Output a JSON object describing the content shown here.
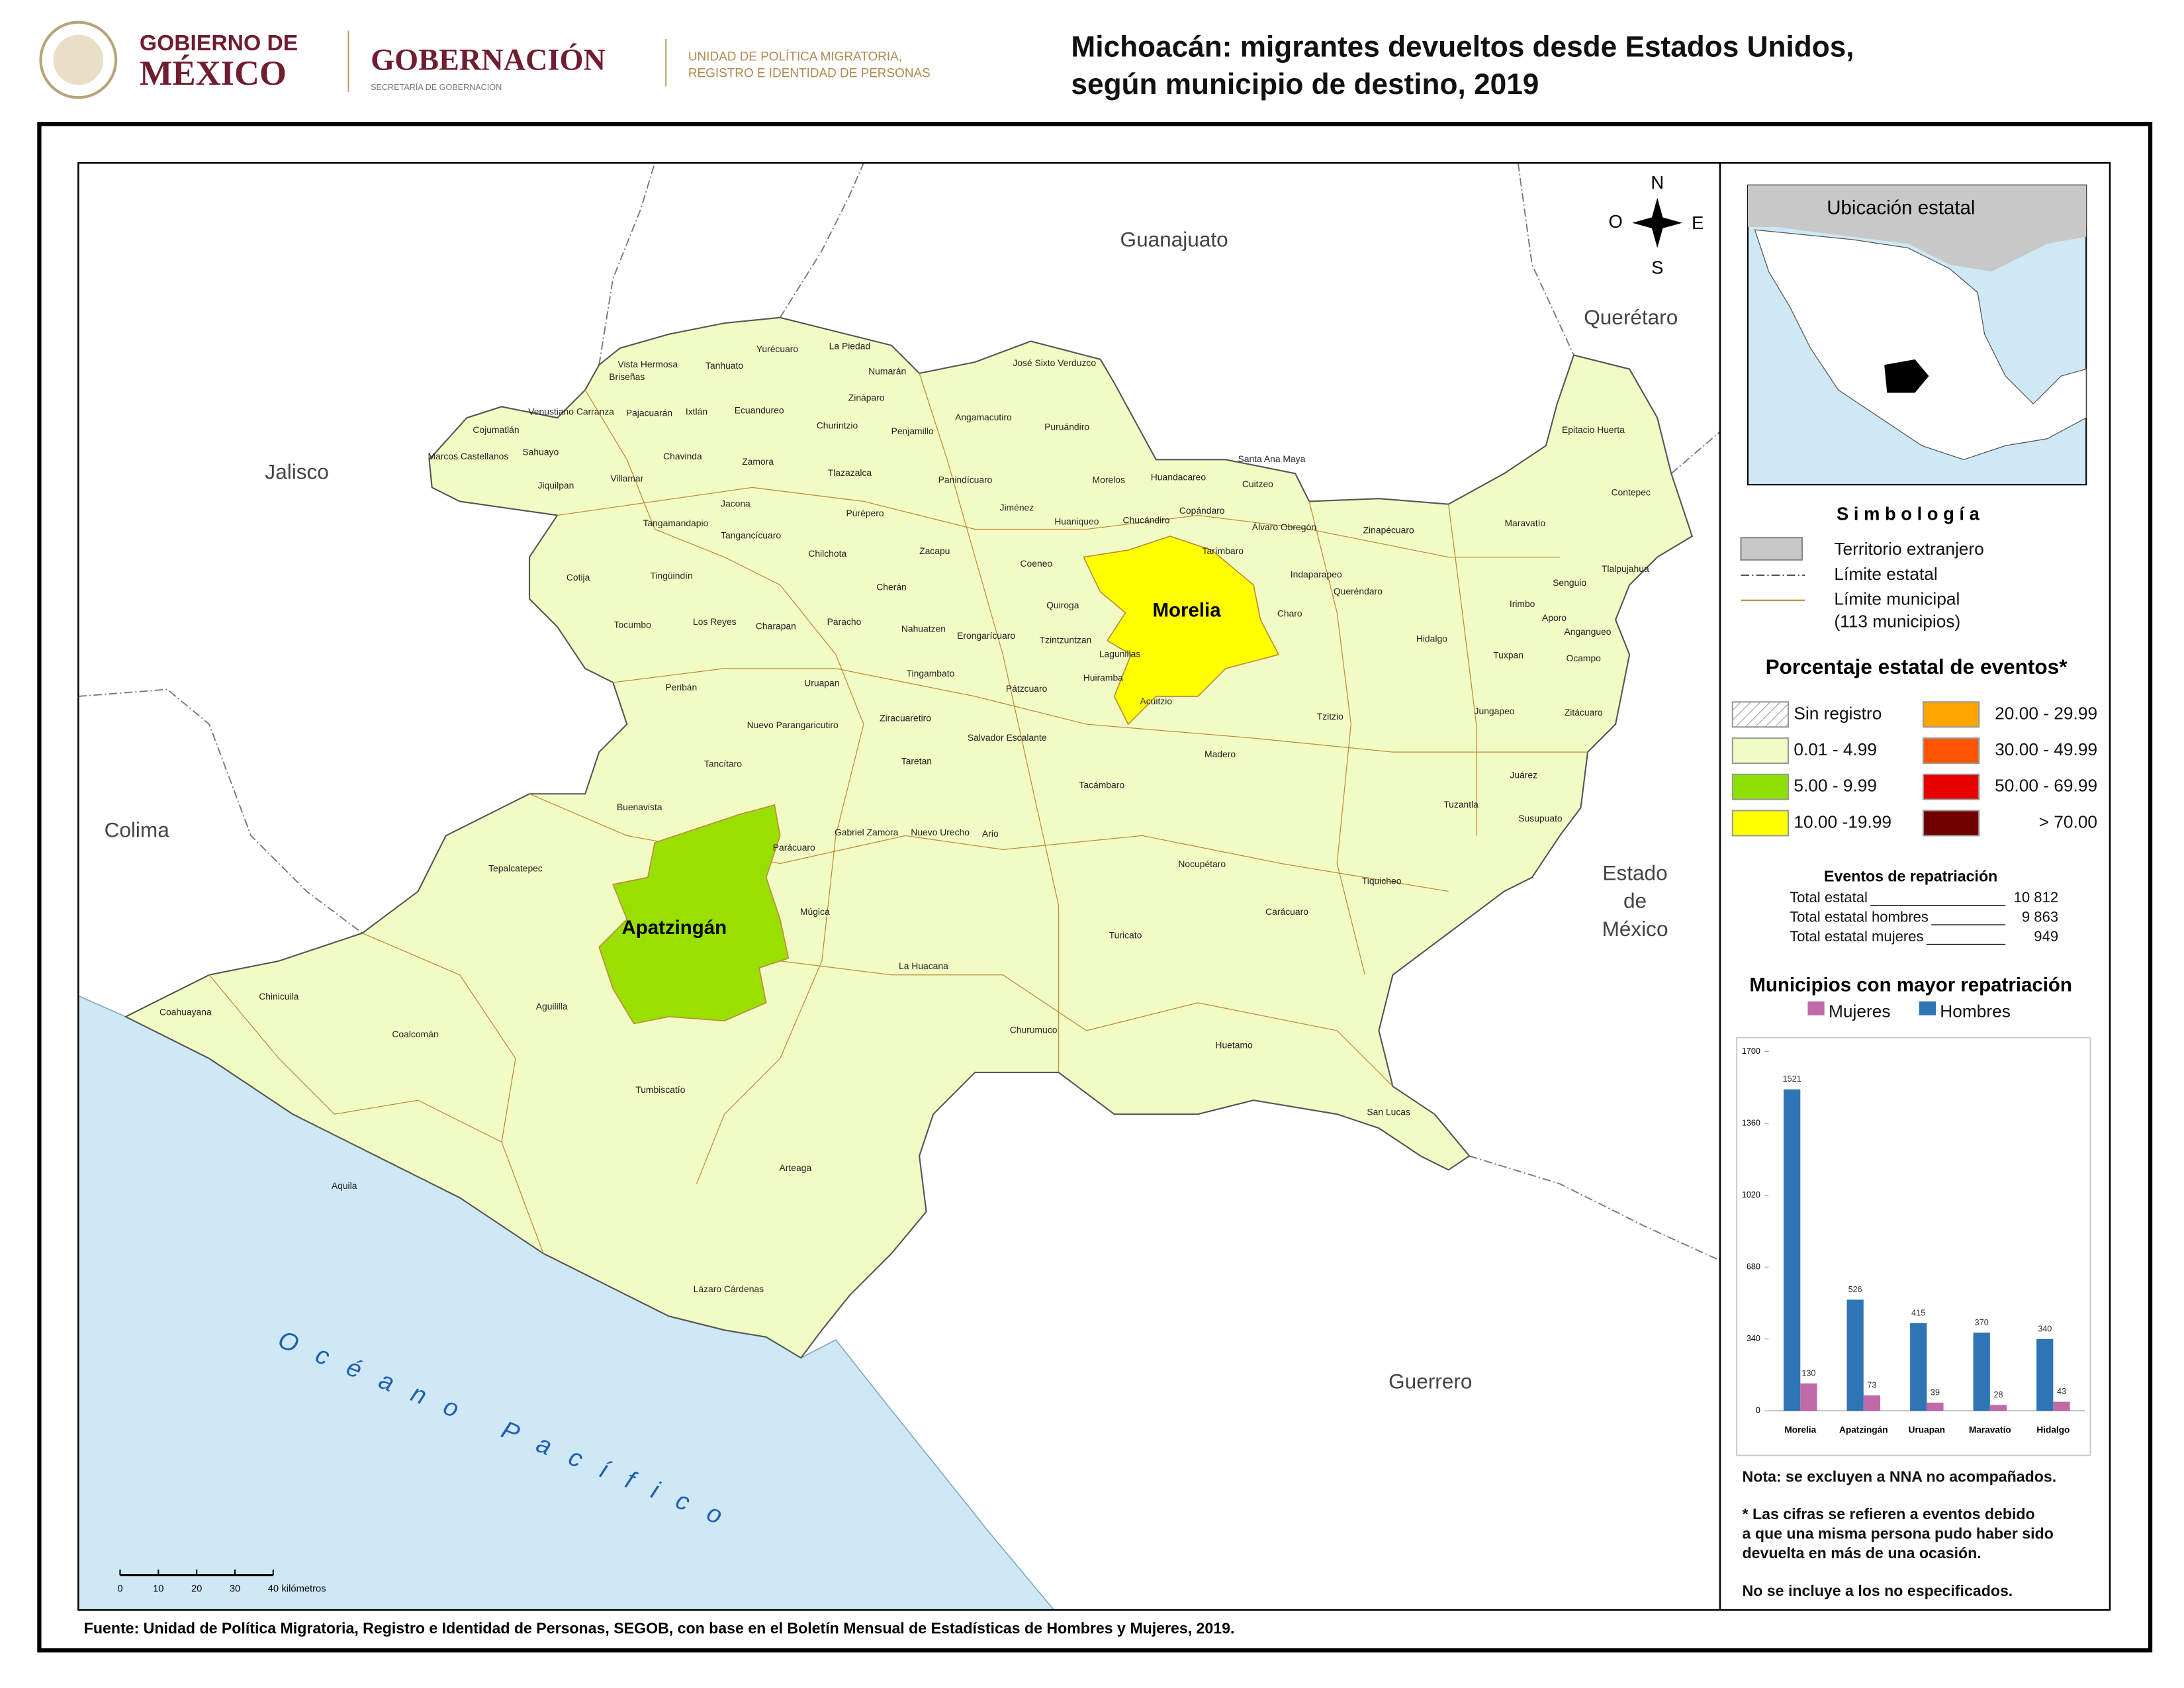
{
  "header": {
    "gov_line1": "GOBIERNO DE",
    "gov_line2": "MÉXICO",
    "secretaria": "GOBERNACIÓN",
    "secretaria_sub": "SECRETARÍA DE GOBERNACIÓN",
    "unit_line1": "UNIDAD DE POLÍTICA MIGRATORIA,",
    "unit_line2": "REGISTRO E IDENTIDAD DE PERSONAS",
    "title_line1": "Michoacán: migrantes devueltos desde Estados Unidos,",
    "title_line2": "según municipio de destino, 2019"
  },
  "map": {
    "neighbors": [
      "Guanajuato",
      "Querétaro",
      "Jalisco",
      "Colima",
      "Estado",
      "de",
      "México",
      "Guerrero"
    ],
    "ocean": "Océano Pacífico",
    "highlighted": [
      {
        "name": "Morelia",
        "color": "#ffff00"
      },
      {
        "name": "Apatzingán",
        "color": "#99e000"
      }
    ],
    "base_color": "#f0fcc4",
    "municipalities": [
      "Vista Hermosa",
      "Briseñas",
      "Tanhuato",
      "Yurécuaro",
      "La Piedad",
      "Numarán",
      "José Sixto Verduzco",
      "Zináparo",
      "Venustiano Carranza",
      "Pajacuarán",
      "Ixtlán",
      "Ecuandureo",
      "Churintzio",
      "Penjamillo",
      "Angamacutiro",
      "Puruándiro",
      "Cojumatlán",
      "Sahuayo",
      "Marcos Castellanos",
      "Chavinda",
      "Zamora",
      "Jiquilpan",
      "Villamar",
      "Tlazazalca",
      "Panindícuaro",
      "Morelos",
      "Huandacareo",
      "Santa Ana Maya",
      "Cuitzeo",
      "Epitacio Huerta",
      "Contepec",
      "Jacona",
      "Purépero",
      "Jiménez",
      "Huaniqueo",
      "Chucándiro",
      "Copándaro",
      "Tangamandapio",
      "Tangancícuaro",
      "Álvaro Obregón",
      "Zinapécuaro",
      "Maravatío",
      "Chilchota",
      "Zacapu",
      "Tarímbaro",
      "Cotija",
      "Tingüindín",
      "Coeneo",
      "Indaparapeo",
      "Tlalpujahua",
      "Senguio",
      "Cherán",
      "Queréndaro",
      "Quiroga",
      "Irimbo",
      "Charo",
      "Los Reyes",
      "Charapan",
      "Paracho",
      "Aporo",
      "Tocumbo",
      "Nahuatzen",
      "Erongarícuaro",
      "Tzintzuntzan",
      "Hidalgo",
      "Angangueo",
      "Lagunillas",
      "Tuxpan",
      "Ocampo",
      "Tingambato",
      "Huiramba",
      "Peribán",
      "Uruapan",
      "Pátzcuaro",
      "Acuitzio",
      "Tzitzio",
      "Jungapeo",
      "Zitácuaro",
      "Ziracuaretiro",
      "Nuevo Parangaricutiro",
      "Salvador Escalante",
      "Madero",
      "Tancítaro",
      "Taretan",
      "Juárez",
      "Tacámbaro",
      "Buenavista",
      "Tuzantla",
      "Susupuato",
      "Gabriel Zamora",
      "Nuevo Urecho",
      "Ario",
      "Parácuaro",
      "Nocupétaro",
      "Tepalcatepec",
      "Tiquicheo",
      "Múgica",
      "Carácuaro",
      "Turicato",
      "La Huacana",
      "Chinicuila",
      "Coahuayana",
      "Aguililla",
      "Coalcomán",
      "Churumuco",
      "Huetamo",
      "Tumbiscatío",
      "San Lucas",
      "Arteaga",
      "Aquila",
      "Lázaro Cárdenas"
    ],
    "compass": [
      "N",
      "O",
      "E",
      "S"
    ],
    "scale_bar": {
      "ticks": [
        0,
        10,
        20,
        30,
        40
      ],
      "unit": "kilómetros"
    },
    "inset_title": "Ubicación estatal"
  },
  "legend": {
    "title": "S i m b o l o g í a",
    "items": [
      "Territorio extranjero",
      "Límite estatal",
      "Límite municipal",
      "(113 municipios)"
    ],
    "ranges_title": "Porcentaje estatal de eventos*",
    "ranges": [
      {
        "label": "Sin registro",
        "pattern": "hatch"
      },
      {
        "label": "0.01  - 4.99",
        "color": "#f0fcc4"
      },
      {
        "label": "5.00  - 9.99",
        "color": "#8ee000"
      },
      {
        "label": "10.00 -19.99",
        "color": "#ffff00"
      },
      {
        "label": "20.00 - 29.99",
        "color": "#ffa500"
      },
      {
        "label": "30.00 - 49.99",
        "color": "#ff5500"
      },
      {
        "label": "50.00 - 69.99",
        "color": "#e60000"
      },
      {
        "label": "> 70.00",
        "color": "#700000"
      }
    ]
  },
  "stats": {
    "title": "Eventos de repatriación",
    "rows": [
      {
        "label": "Total estatal",
        "value": "10 812"
      },
      {
        "label": "Total estatal hombres",
        "value": "9 863"
      },
      {
        "label": "Total estatal mujeres",
        "value": "949"
      }
    ]
  },
  "chart_data": {
    "type": "bar",
    "title": "Municipios con mayor repatriación",
    "categories": [
      "Morelia",
      "Apatzingán",
      "Uruapan",
      "Maravatío",
      "Hidalgo"
    ],
    "series": [
      {
        "name": "Hombres",
        "color": "#2e75b6",
        "values": [
          1521,
          526,
          415,
          370,
          340
        ]
      },
      {
        "name": "Mujeres",
        "color": "#c06aa8",
        "values": [
          130,
          73,
          39,
          28,
          43
        ]
      }
    ],
    "ylim": [
      0,
      1700
    ],
    "yticks": [
      0,
      340,
      680,
      1020,
      1360,
      1700
    ]
  },
  "notes": [
    "Nota: se excluyen a NNA no acompañados.",
    "* Las cifras se refieren a eventos debido",
    "a que una misma persona pudo haber sido",
    "devuelta en más de una ocasión.",
    "No se incluye a los no especificados."
  ],
  "source": "Fuente: Unidad de Política Migratoria, Registro e Identidad de Personas, SEGOB, con base en el Boletín Mensual de Estadísticas de Hombres y Mujeres, 2019."
}
